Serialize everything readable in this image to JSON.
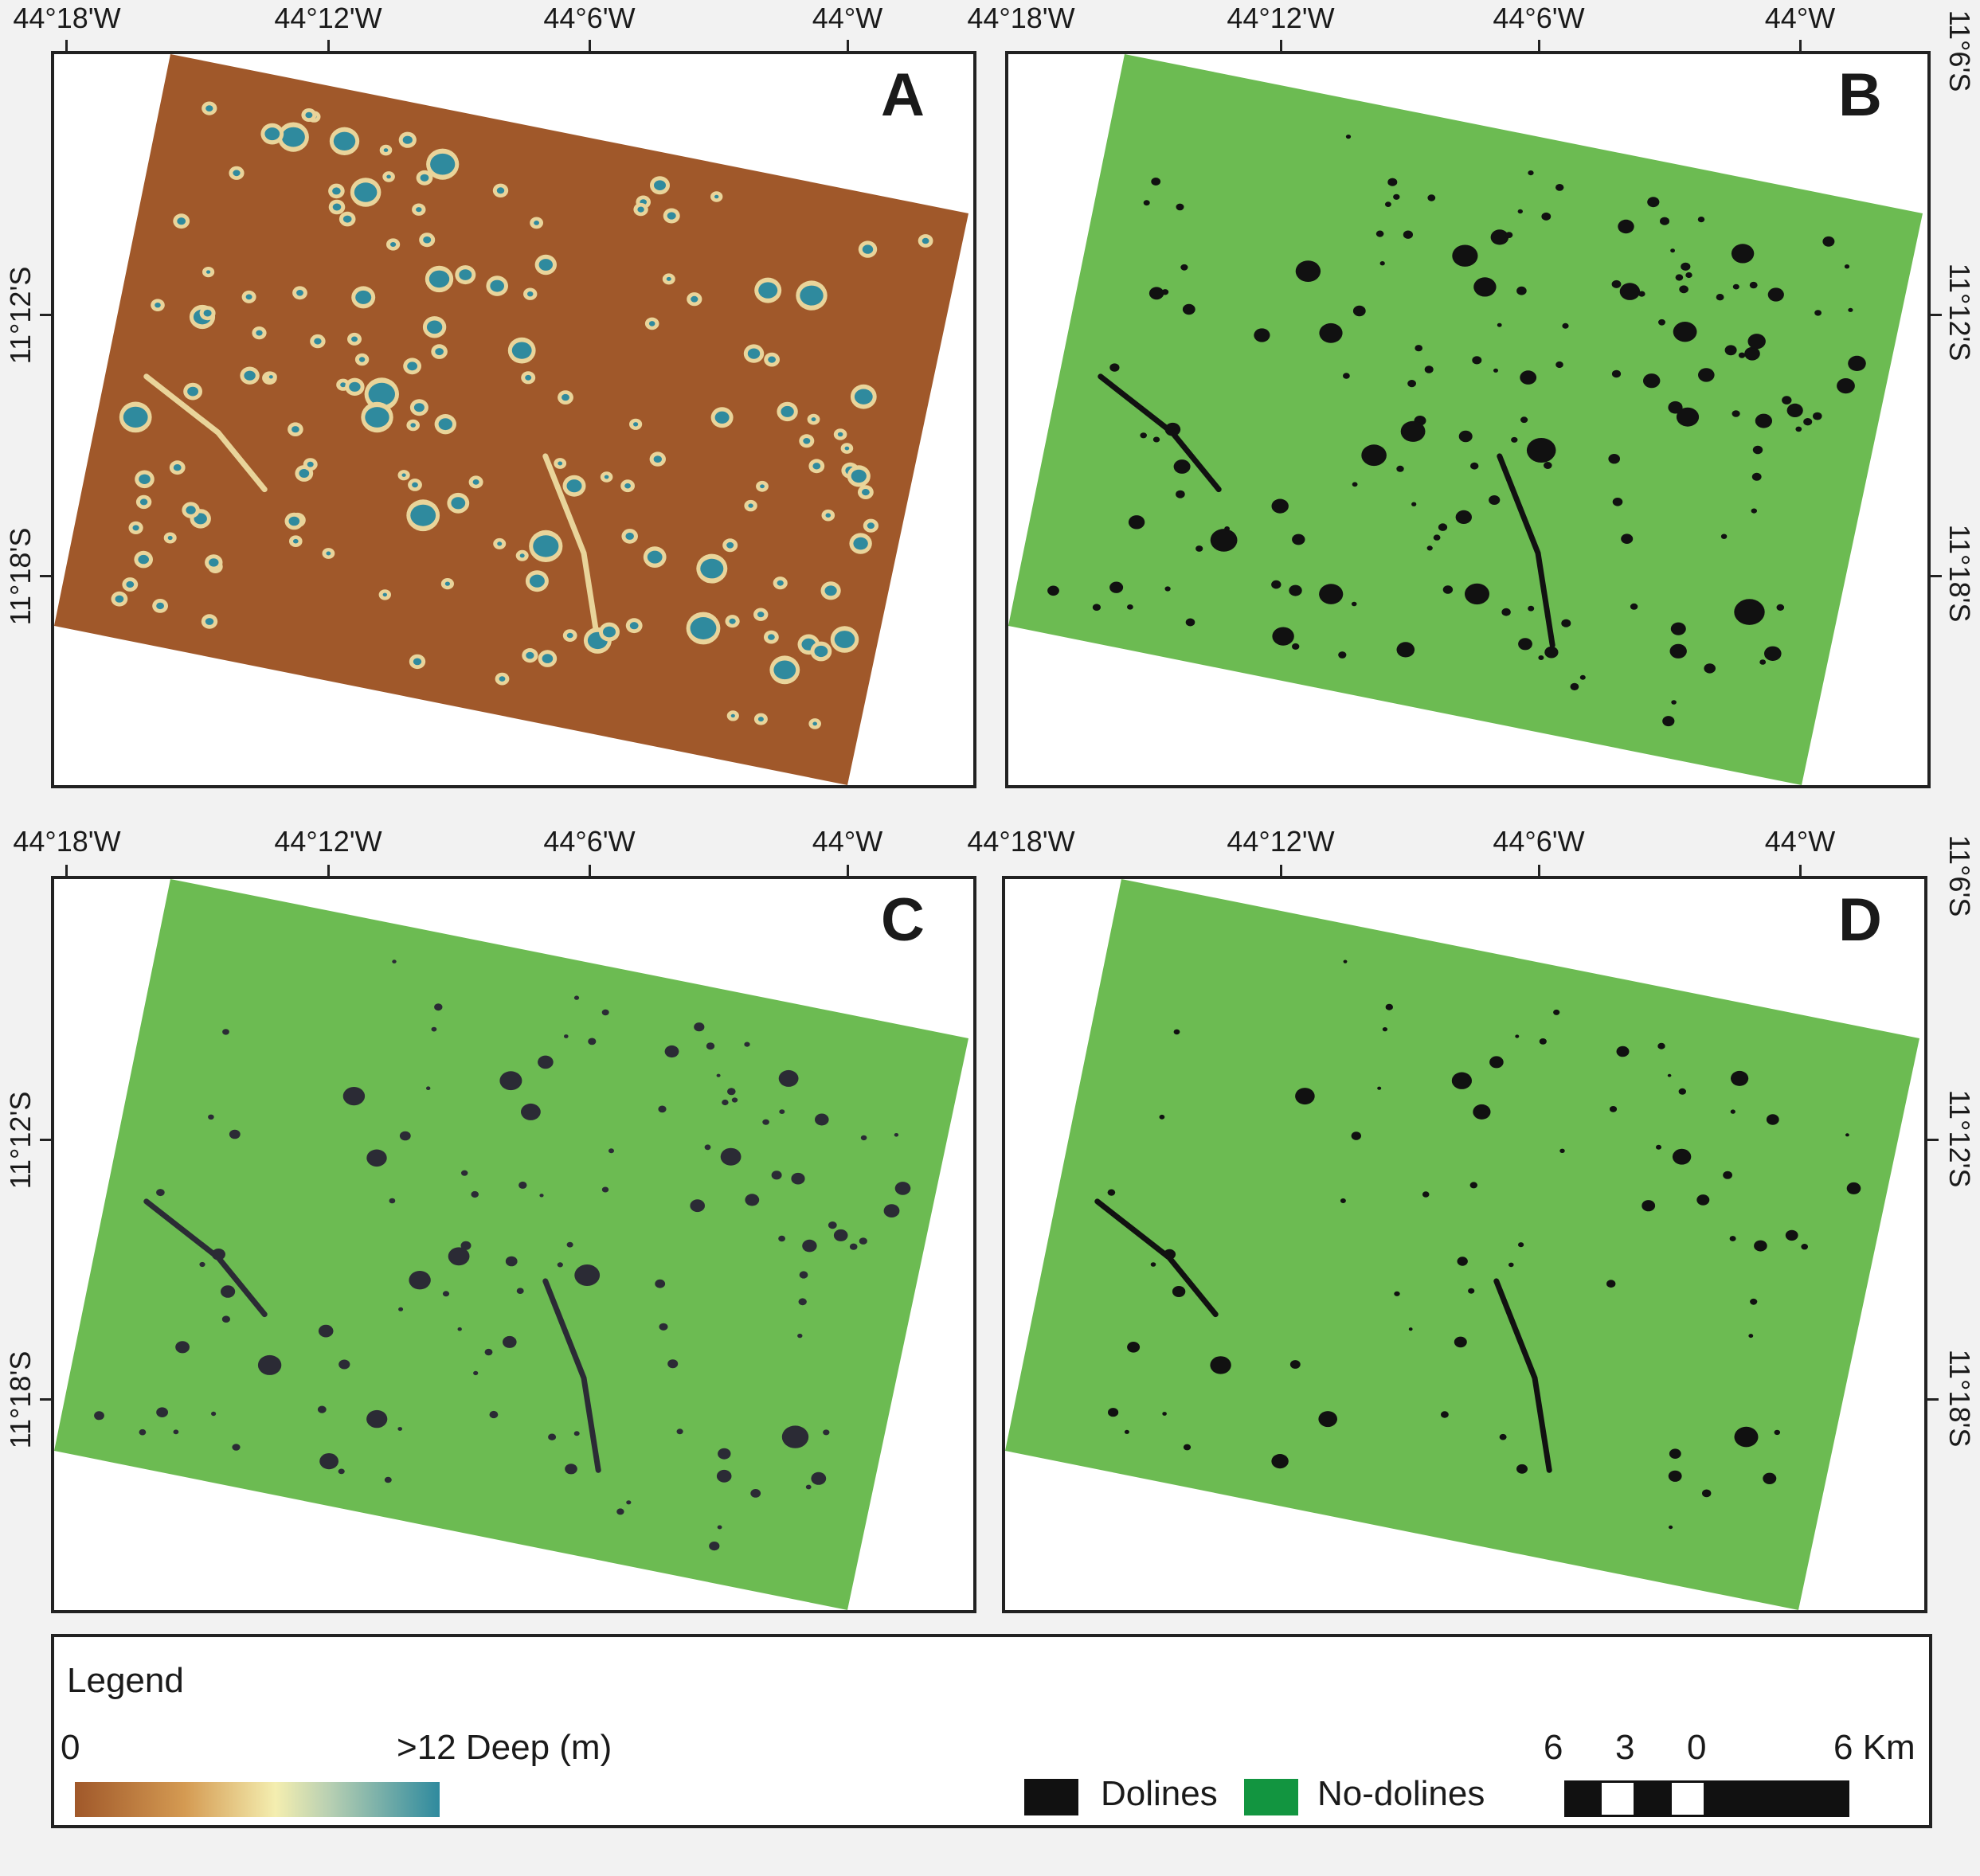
{
  "panels": [
    {
      "letter": "A",
      "style": "depth"
    },
    {
      "letter": "B",
      "style": "dolines"
    },
    {
      "letter": "C",
      "style": "dolines"
    },
    {
      "letter": "D",
      "style": "dolines"
    }
  ],
  "axes": {
    "lon_labels": [
      "44°18'W",
      "44°12'W",
      "44°6'W",
      "44°W"
    ],
    "lat_labels": [
      "11°6'S",
      "11°12'S",
      "11°18'S"
    ]
  },
  "legend": {
    "title": "Legend",
    "depth_min": "0",
    "depth_max": ">12 Deep (m)",
    "dolines_label": "Dolines",
    "nodolines_label": "No-dolines",
    "scale_labels": [
      "6",
      "3",
      "0",
      "6 Km"
    ]
  },
  "colors": {
    "depth_background": "#a0582a",
    "depth_light": "#e9d49a",
    "depth_deep": "#2f8a9e",
    "nodolines_map": "#6cbb52",
    "nodolines_legend": "#129540",
    "dolines": "#111111",
    "dolines_panel_c": "#2b2b35"
  }
}
